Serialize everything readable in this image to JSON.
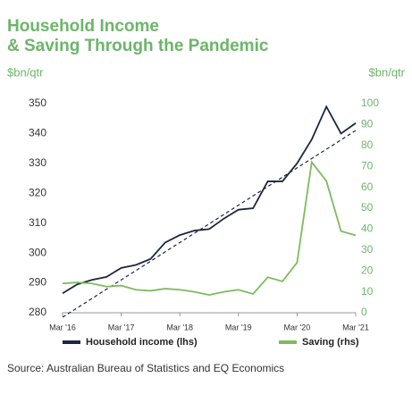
{
  "chart_data": {
    "type": "line",
    "title": [
      "Household Income",
      "& Saving Through the Pandemic"
    ],
    "ylabel": "$bn/qtr",
    "y2label": "$bn/qtr",
    "source": "Source: Australian Bureau of Statistics and EQ Economics",
    "categories": [
      "Mar '16",
      null,
      null,
      null,
      "Mar '17",
      null,
      null,
      null,
      "Mar '18",
      null,
      null,
      null,
      "Mar '19",
      null,
      null,
      null,
      "Mar '20",
      null,
      null,
      null,
      "Mar '21"
    ],
    "ylim": [
      280,
      350
    ],
    "yticks": [
      280,
      290,
      300,
      310,
      320,
      330,
      340,
      350
    ],
    "y2lim": [
      0,
      100
    ],
    "y2ticks": [
      0,
      10,
      20,
      30,
      40,
      50,
      60,
      70,
      80,
      90,
      100
    ],
    "series": [
      {
        "name": "Household income (lhs)",
        "color": "#1c2640",
        "axis": "y",
        "values": [
          286.5,
          289.5,
          291,
          292,
          295,
          296,
          298,
          303.5,
          306,
          307.5,
          308,
          311.5,
          314.5,
          315,
          324,
          324,
          330,
          338,
          349,
          340,
          343.5
        ]
      },
      {
        "name": "Saving (rhs)",
        "color": "#7dbb5e",
        "axis": "y2",
        "values": [
          14,
          14.5,
          14,
          12.5,
          13,
          11,
          10.5,
          11.5,
          11,
          10,
          8.5,
          10,
          11,
          9,
          17,
          15,
          24,
          72,
          63,
          39,
          37
        ]
      }
    ],
    "trend_line": {
      "color": "#1c2640",
      "values": [
        278.5,
        341
      ]
    }
  }
}
